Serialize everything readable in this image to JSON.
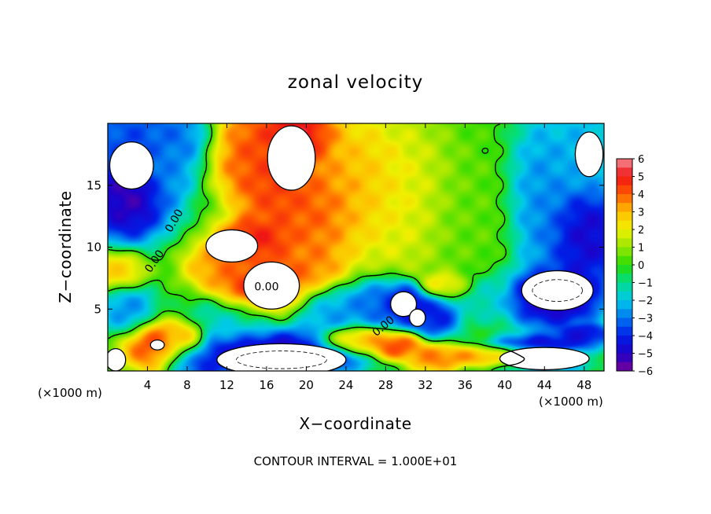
{
  "chart_data": {
    "type": "heatmap",
    "title": "zonal velocity",
    "xlabel": "X−coordinate",
    "ylabel": "Z−coordinate",
    "x_unit_label": "(×1000 m)",
    "x_ticks": [
      "4",
      "8",
      "12",
      "16",
      "20",
      "24",
      "28",
      "32",
      "36",
      "40",
      "44",
      "48"
    ],
    "x_tick_values": [
      4,
      8,
      12,
      16,
      20,
      24,
      28,
      32,
      36,
      40,
      44,
      48
    ],
    "xlim": [
      0,
      50
    ],
    "y_ticks": [
      "5",
      "10",
      "15"
    ],
    "y_tick_values": [
      5,
      10,
      15
    ],
    "ylim": [
      0,
      20
    ],
    "colorbar": {
      "ticks": [
        "6",
        "5",
        "4",
        "3",
        "2",
        "1",
        "0",
        "−1",
        "−2",
        "−3",
        "−4",
        "−5",
        "−6"
      ],
      "values": [
        6,
        5,
        4,
        3,
        2,
        1,
        0,
        -1,
        -2,
        -3,
        -4,
        -5,
        -6
      ],
      "range": [
        -6,
        6
      ]
    },
    "contour_labels": [
      "0.00",
      "0.00",
      "0.00",
      "0.00"
    ],
    "contour_interval_text": "CONTOUR INTERVAL = 1.000E+01",
    "field_blobs": [
      {
        "x": 14,
        "z": 18,
        "sx": 2.5,
        "sz": 3,
        "v": 4.5
      },
      {
        "x": 17,
        "z": 15,
        "sx": 3,
        "sz": 3,
        "v": 5
      },
      {
        "x": 21,
        "z": 13,
        "sx": 3,
        "sz": 3,
        "v": 4.5
      },
      {
        "x": 25,
        "z": 15,
        "sx": 4,
        "sz": 4,
        "v": 3.5
      },
      {
        "x": 15,
        "z": 10.5,
        "sx": 3,
        "sz": 1.5,
        "v": 5.5
      },
      {
        "x": 12,
        "z": 8.5,
        "sx": 3,
        "sz": 1.5,
        "v": 4
      },
      {
        "x": 16,
        "z": 6.5,
        "sx": 3.5,
        "sz": 1.8,
        "v": 6
      },
      {
        "x": 20,
        "z": 8.5,
        "sx": 3,
        "sz": 2,
        "v": 4
      },
      {
        "x": 19,
        "z": 19,
        "sx": 3,
        "sz": 2,
        "v": 6
      },
      {
        "x": 30,
        "z": 14,
        "sx": 4,
        "sz": 5,
        "v": 2
      },
      {
        "x": 36,
        "z": 12,
        "sx": 3,
        "sz": 5,
        "v": 0.5
      },
      {
        "x": 44,
        "z": 14,
        "sx": 2.5,
        "sz": 5,
        "v": -3
      },
      {
        "x": 48,
        "z": 11,
        "sx": 3,
        "sz": 3,
        "v": -5.5
      },
      {
        "x": 48,
        "z": 18,
        "sx": 2.5,
        "sz": 3,
        "v": -2.5
      },
      {
        "x": 3,
        "z": 19,
        "sx": 5,
        "sz": 2,
        "v": -4
      },
      {
        "x": 2,
        "z": 14,
        "sx": 3,
        "sz": 2.5,
        "v": -6
      },
      {
        "x": 6,
        "z": 17,
        "sx": 2,
        "sz": 3,
        "v": -3
      },
      {
        "x": 1,
        "z": 8,
        "sx": 2,
        "sz": 1.2,
        "v": 3
      },
      {
        "x": 2,
        "z": 5,
        "sx": 2,
        "sz": 1.5,
        "v": -3
      },
      {
        "x": 5,
        "z": 2,
        "sx": 2.5,
        "sz": 1.5,
        "v": 5
      },
      {
        "x": 8,
        "z": 2.5,
        "sx": 1.5,
        "sz": 1.2,
        "v": 4
      },
      {
        "x": 9,
        "z": 1,
        "sx": 2.5,
        "sz": 1.2,
        "v": -4.5
      },
      {
        "x": 13,
        "z": 4,
        "sx": 4,
        "sz": 1.5,
        "v": -2
      },
      {
        "x": 17,
        "z": 1.5,
        "sx": 6,
        "sz": 1.5,
        "v": -6
      },
      {
        "x": 28,
        "z": 5.5,
        "sx": 3,
        "sz": 1.5,
        "v": -4
      },
      {
        "x": 30,
        "z": 5.5,
        "sx": 1.5,
        "sz": 1.2,
        "v": -6
      },
      {
        "x": 33,
        "z": 4.5,
        "sx": 2,
        "sz": 1.2,
        "v": -5
      },
      {
        "x": 25,
        "z": 2.5,
        "sx": 3,
        "sz": 0.8,
        "v": 4
      },
      {
        "x": 29,
        "z": 2,
        "sx": 2,
        "sz": 0.8,
        "v": 5
      },
      {
        "x": 33,
        "z": 1,
        "sx": 2,
        "sz": 0.8,
        "v": 4
      },
      {
        "x": 41,
        "z": 1.2,
        "sx": 6,
        "sz": 0.6,
        "v": 4.5
      },
      {
        "x": 45,
        "z": 6,
        "sx": 3.5,
        "sz": 1.8,
        "v": -6
      },
      {
        "x": 38,
        "z": 6,
        "sx": 2,
        "sz": 1.5,
        "v": -2
      },
      {
        "x": 34,
        "z": 7,
        "sx": 2,
        "sz": 0.8,
        "v": 3
      },
      {
        "x": 44,
        "z": 1.5,
        "sx": 4,
        "sz": 1,
        "v": -6
      },
      {
        "x": 48,
        "z": 3,
        "sx": 2,
        "sz": 0.6,
        "v": -5
      },
      {
        "x": 22,
        "z": 5,
        "sx": 3,
        "sz": 1.5,
        "v": -3
      }
    ],
    "white_regions": [
      {
        "x": 16.5,
        "z": 6.9,
        "rx": 2.8,
        "rz": 1.9
      },
      {
        "x": 12.5,
        "z": 10.1,
        "rx": 2.6,
        "rz": 1.3
      },
      {
        "x": 18.5,
        "z": 17.2,
        "rx": 2.4,
        "rz": 2.6
      },
      {
        "x": 2.4,
        "z": 16.6,
        "rx": 2.2,
        "rz": 1.9
      },
      {
        "x": 29.8,
        "z": 5.4,
        "rx": 1.3,
        "rz": 1.0
      },
      {
        "x": 31.2,
        "z": 4.3,
        "rx": 0.8,
        "rz": 0.7
      },
      {
        "x": 45.3,
        "z": 6.5,
        "rx": 3.6,
        "rz": 1.6
      },
      {
        "x": 48.5,
        "z": 17.5,
        "rx": 1.4,
        "rz": 1.8
      },
      {
        "x": 17.5,
        "z": 0.9,
        "rx": 6.5,
        "rz": 1.3
      },
      {
        "x": 44,
        "z": 1.0,
        "rx": 4.5,
        "rz": 0.9
      },
      {
        "x": 5,
        "z": 2.1,
        "rx": 0.7,
        "rz": 0.4
      },
      {
        "x": 0.8,
        "z": 0.9,
        "rx": 1.0,
        "rz": 0.9
      }
    ]
  }
}
